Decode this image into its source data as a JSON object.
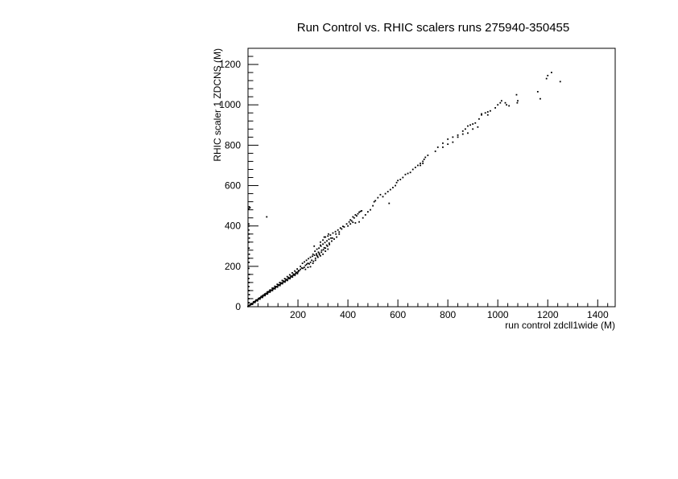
{
  "chart_data": {
    "type": "scatter",
    "title": "Run Control vs. RHIC scalers runs 275940-350455",
    "xlabel": "run control zdcll1wide (M)",
    "ylabel": "RHIC scaler 1 ZDCNS (M)",
    "xlim": [
      0,
      1470
    ],
    "ylim": [
      0,
      1280
    ],
    "x_ticks": [
      {
        "value": 200,
        "label": "200"
      },
      {
        "value": 400,
        "label": "400"
      },
      {
        "value": 600,
        "label": "600"
      },
      {
        "value": 800,
        "label": "800"
      },
      {
        "value": 1000,
        "label": "1000"
      },
      {
        "value": 1200,
        "label": "1200"
      },
      {
        "value": 1400,
        "label": "1400"
      }
    ],
    "y_ticks": [
      {
        "value": 0,
        "label": "0"
      },
      {
        "value": 200,
        "label": "200"
      },
      {
        "value": 400,
        "label": "400"
      },
      {
        "value": 600,
        "label": "600"
      },
      {
        "value": 800,
        "label": "800"
      },
      {
        "value": 1000,
        "label": "1000"
      },
      {
        "value": 1200,
        "label": "1200"
      }
    ],
    "grid": false,
    "legend": "none",
    "marker_color": "#000000",
    "points": [
      [
        5,
        6
      ],
      [
        10,
        9
      ],
      [
        15,
        14
      ],
      [
        20,
        18
      ],
      [
        25,
        22
      ],
      [
        30,
        27
      ],
      [
        35,
        31
      ],
      [
        40,
        35
      ],
      [
        45,
        39
      ],
      [
        50,
        44
      ],
      [
        55,
        48
      ],
      [
        60,
        52
      ],
      [
        65,
        57
      ],
      [
        70,
        61
      ],
      [
        75,
        65
      ],
      [
        80,
        70
      ],
      [
        85,
        74
      ],
      [
        90,
        78
      ],
      [
        95,
        82
      ],
      [
        100,
        87
      ],
      [
        105,
        91
      ],
      [
        110,
        95
      ],
      [
        115,
        99
      ],
      [
        120,
        104
      ],
      [
        125,
        108
      ],
      [
        130,
        112
      ],
      [
        135,
        116
      ],
      [
        140,
        121
      ],
      [
        145,
        125
      ],
      [
        150,
        129
      ],
      [
        155,
        133
      ],
      [
        160,
        138
      ],
      [
        165,
        142
      ],
      [
        170,
        146
      ],
      [
        175,
        150
      ],
      [
        180,
        155
      ],
      [
        185,
        159
      ],
      [
        190,
        163
      ],
      [
        195,
        168
      ],
      [
        200,
        172
      ],
      [
        12,
        16
      ],
      [
        22,
        24
      ],
      [
        32,
        33
      ],
      [
        42,
        41
      ],
      [
        52,
        50
      ],
      [
        62,
        58
      ],
      [
        72,
        66
      ],
      [
        82,
        75
      ],
      [
        92,
        83
      ],
      [
        102,
        92
      ],
      [
        112,
        100
      ],
      [
        122,
        109
      ],
      [
        132,
        118
      ],
      [
        142,
        127
      ],
      [
        152,
        136
      ],
      [
        162,
        145
      ],
      [
        172,
        153
      ],
      [
        182,
        162
      ],
      [
        192,
        171
      ],
      [
        202,
        179
      ],
      [
        18,
        12
      ],
      [
        28,
        21
      ],
      [
        38,
        29
      ],
      [
        48,
        38
      ],
      [
        58,
        46
      ],
      [
        68,
        55
      ],
      [
        78,
        63
      ],
      [
        88,
        72
      ],
      [
        98,
        80
      ],
      [
        108,
        88
      ],
      [
        118,
        97
      ],
      [
        128,
        105
      ],
      [
        138,
        114
      ],
      [
        148,
        122
      ],
      [
        158,
        130
      ],
      [
        168,
        139
      ],
      [
        178,
        147
      ],
      [
        188,
        155
      ],
      [
        198,
        164
      ],
      [
        8,
        10
      ],
      [
        14,
        12
      ],
      [
        27,
        26
      ],
      [
        36,
        34
      ],
      [
        47,
        44
      ],
      [
        57,
        54
      ],
      [
        67,
        63
      ],
      [
        77,
        73
      ],
      [
        87,
        82
      ],
      [
        97,
        92
      ],
      [
        107,
        101
      ],
      [
        117,
        111
      ],
      [
        127,
        120
      ],
      [
        137,
        130
      ],
      [
        147,
        139
      ],
      [
        157,
        149
      ],
      [
        167,
        158
      ],
      [
        177,
        168
      ],
      [
        187,
        177
      ],
      [
        197,
        187
      ],
      [
        205,
        178
      ],
      [
        210,
        185
      ],
      [
        215,
        192
      ],
      [
        220,
        190
      ],
      [
        225,
        195
      ],
      [
        230,
        205
      ],
      [
        235,
        210
      ],
      [
        240,
        215
      ],
      [
        245,
        212
      ],
      [
        250,
        220
      ],
      [
        210,
        200
      ],
      [
        218,
        215
      ],
      [
        226,
        222
      ],
      [
        234,
        230
      ],
      [
        242,
        238
      ],
      [
        250,
        245
      ],
      [
        258,
        250
      ],
      [
        266,
        255
      ],
      [
        274,
        262
      ],
      [
        282,
        270
      ],
      [
        255,
        230
      ],
      [
        262,
        225
      ],
      [
        270,
        240
      ],
      [
        278,
        250
      ],
      [
        286,
        258
      ],
      [
        294,
        270
      ],
      [
        302,
        282
      ],
      [
        310,
        290
      ],
      [
        318,
        300
      ],
      [
        326,
        308
      ],
      [
        260,
        260
      ],
      [
        268,
        275
      ],
      [
        276,
        285
      ],
      [
        284,
        290
      ],
      [
        292,
        300
      ],
      [
        300,
        310
      ],
      [
        308,
        318
      ],
      [
        316,
        326
      ],
      [
        324,
        334
      ],
      [
        332,
        340
      ],
      [
        290,
        320
      ],
      [
        300,
        330
      ],
      [
        310,
        345
      ],
      [
        320,
        350
      ],
      [
        330,
        355
      ],
      [
        340,
        365
      ],
      [
        350,
        372
      ],
      [
        360,
        380
      ],
      [
        370,
        390
      ],
      [
        380,
        398
      ],
      [
        275,
        255
      ],
      [
        285,
        265
      ],
      [
        295,
        280
      ],
      [
        305,
        292
      ],
      [
        315,
        305
      ],
      [
        325,
        315
      ],
      [
        335,
        325
      ],
      [
        345,
        335
      ],
      [
        355,
        345
      ],
      [
        365,
        360
      ],
      [
        230,
        185
      ],
      [
        240,
        195
      ],
      [
        250,
        198
      ],
      [
        260,
        215
      ],
      [
        270,
        230
      ],
      [
        280,
        245
      ],
      [
        290,
        252
      ],
      [
        300,
        260
      ],
      [
        310,
        275
      ],
      [
        320,
        285
      ],
      [
        265,
        300
      ],
      [
        290,
        305
      ],
      [
        305,
        345
      ],
      [
        322,
        360
      ],
      [
        338,
        340
      ],
      [
        352,
        360
      ],
      [
        365,
        370
      ],
      [
        375,
        385
      ],
      [
        385,
        395
      ],
      [
        395,
        410
      ],
      [
        405,
        420
      ],
      [
        415,
        425
      ],
      [
        425,
        440
      ],
      [
        435,
        450
      ],
      [
        440,
        460
      ],
      [
        445,
        468
      ],
      [
        450,
        472
      ],
      [
        455,
        475
      ],
      [
        410,
        430
      ],
      [
        420,
        445
      ],
      [
        430,
        455
      ],
      [
        400,
        400
      ],
      [
        410,
        410
      ],
      [
        420,
        418
      ],
      [
        430,
        415
      ],
      [
        445,
        420
      ],
      [
        460,
        440
      ],
      [
        470,
        455
      ],
      [
        480,
        470
      ],
      [
        490,
        480
      ],
      [
        500,
        500
      ],
      [
        505,
        520
      ],
      [
        510,
        525
      ],
      [
        520,
        540
      ],
      [
        530,
        555
      ],
      [
        540,
        545
      ],
      [
        550,
        560
      ],
      [
        560,
        570
      ],
      [
        570,
        580
      ],
      [
        580,
        590
      ],
      [
        565,
        512
      ],
      [
        590,
        600
      ],
      [
        595,
        615
      ],
      [
        600,
        625
      ],
      [
        610,
        630
      ],
      [
        620,
        640
      ],
      [
        630,
        655
      ],
      [
        640,
        660
      ],
      [
        650,
        665
      ],
      [
        660,
        680
      ],
      [
        670,
        690
      ],
      [
        680,
        700
      ],
      [
        690,
        710
      ],
      [
        700,
        720
      ],
      [
        705,
        730
      ],
      [
        710,
        740
      ],
      [
        720,
        750
      ],
      [
        690,
        700
      ],
      [
        700,
        710
      ],
      [
        750,
        770
      ],
      [
        760,
        790
      ],
      [
        780,
        810
      ],
      [
        800,
        830
      ],
      [
        820,
        840
      ],
      [
        840,
        850
      ],
      [
        860,
        870
      ],
      [
        870,
        880
      ],
      [
        880,
        895
      ],
      [
        890,
        900
      ],
      [
        900,
        905
      ],
      [
        910,
        910
      ],
      [
        925,
        930
      ],
      [
        935,
        950
      ],
      [
        950,
        960
      ],
      [
        960,
        965
      ],
      [
        970,
        970
      ],
      [
        990,
        985
      ],
      [
        1000,
        1000
      ],
      [
        1010,
        1010
      ],
      [
        1015,
        1020
      ],
      [
        780,
        790
      ],
      [
        800,
        805
      ],
      [
        820,
        815
      ],
      [
        840,
        840
      ],
      [
        860,
        855
      ],
      [
        880,
        860
      ],
      [
        900,
        880
      ],
      [
        920,
        890
      ],
      [
        935,
        955
      ],
      [
        960,
        950
      ],
      [
        1030,
        1010
      ],
      [
        1035,
        1000
      ],
      [
        1045,
        995
      ],
      [
        1075,
        1050
      ],
      [
        1078,
        1010
      ],
      [
        1080,
        1020
      ],
      [
        1160,
        1065
      ],
      [
        1170,
        1030
      ],
      [
        1195,
        1130
      ],
      [
        1200,
        1145
      ],
      [
        1215,
        1160
      ],
      [
        1250,
        1115
      ],
      [
        5,
        495
      ],
      [
        3,
        485
      ],
      [
        8,
        490
      ],
      [
        75,
        445
      ],
      [
        3,
        410
      ],
      [
        4,
        400
      ],
      [
        3,
        380
      ],
      [
        4,
        360
      ],
      [
        5,
        340
      ],
      [
        3,
        320
      ],
      [
        4,
        290
      ],
      [
        5,
        260
      ],
      [
        3,
        240
      ],
      [
        4,
        220
      ],
      [
        3,
        190
      ],
      [
        5,
        160
      ],
      [
        3,
        140
      ],
      [
        4,
        120
      ],
      [
        3,
        100
      ],
      [
        4,
        80
      ],
      [
        5,
        60
      ],
      [
        3,
        40
      ],
      [
        4,
        20
      ],
      [
        2,
        5
      ],
      [
        1,
        2
      ],
      [
        0,
        1
      ]
    ]
  }
}
